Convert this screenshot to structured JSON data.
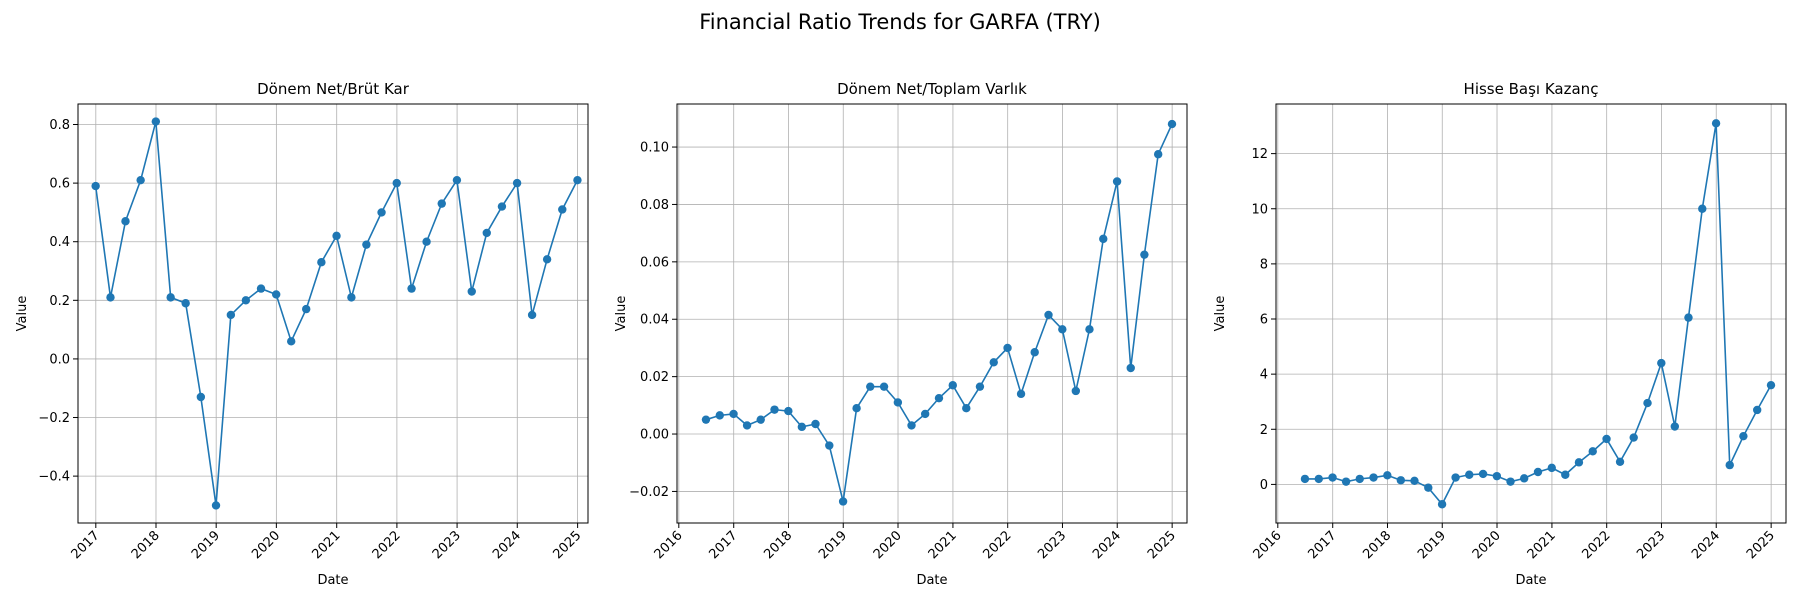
{
  "figure": {
    "title": "Financial Ratio Trends for GARFA (TRY)"
  },
  "colors": {
    "series": "#1f77b4",
    "grid": "#b0b0b0",
    "axes": "#000000"
  },
  "chart_data": [
    {
      "type": "line",
      "title": "Dönem Net/Brüt Kar",
      "xlabel": "Date",
      "ylabel": "Value",
      "x_axis": "date",
      "xlim": [
        "2016-09-15",
        "2025-03-05"
      ],
      "ylim": [
        -0.56,
        0.87
      ],
      "xticks": [
        "2017",
        "2018",
        "2019",
        "2020",
        "2021",
        "2022",
        "2023",
        "2024",
        "2025"
      ],
      "yticks": [
        -0.4,
        -0.2,
        0.0,
        0.2,
        0.4,
        0.6,
        0.8
      ],
      "ytick_labels": [
        "−0.4",
        "−0.2",
        "0.0",
        "0.2",
        "0.4",
        "0.6",
        "0.8"
      ],
      "grid": true,
      "marker": "circle",
      "x": [
        "2016-12-31",
        "2017-03-31",
        "2017-06-30",
        "2017-09-30",
        "2017-12-31",
        "2018-03-31",
        "2018-06-30",
        "2018-09-30",
        "2018-12-31",
        "2019-03-31",
        "2019-06-30",
        "2019-09-30",
        "2019-12-31",
        "2020-03-31",
        "2020-06-30",
        "2020-09-30",
        "2020-12-31",
        "2021-03-31",
        "2021-06-30",
        "2021-09-30",
        "2021-12-31",
        "2022-03-31",
        "2022-06-30",
        "2022-09-30",
        "2022-12-31",
        "2023-03-31",
        "2023-06-30",
        "2023-09-30",
        "2023-12-31",
        "2024-03-31",
        "2024-06-30",
        "2024-09-30",
        "2024-12-31"
      ],
      "y": [
        0.59,
        0.21,
        0.47,
        0.61,
        0.81,
        0.21,
        0.19,
        -0.13,
        -0.5,
        0.15,
        0.2,
        0.24,
        0.22,
        0.06,
        0.17,
        0.33,
        0.42,
        0.21,
        0.39,
        0.5,
        0.6,
        0.24,
        0.4,
        0.53,
        0.61,
        0.23,
        0.43,
        0.52,
        0.6,
        0.15,
        0.34,
        0.51,
        0.61
      ]
    },
    {
      "type": "line",
      "title": "Dönem Net/Toplam Varlık",
      "xlabel": "Date",
      "ylabel": "Value",
      "x_axis": "date",
      "xlim": [
        "2015-12-20",
        "2025-04-10"
      ],
      "ylim": [
        -0.031,
        0.115
      ],
      "xticks": [
        "2016",
        "2017",
        "2018",
        "2019",
        "2020",
        "2021",
        "2022",
        "2023",
        "2024",
        "2025"
      ],
      "yticks": [
        -0.02,
        0.0,
        0.02,
        0.04,
        0.06,
        0.08,
        0.1
      ],
      "ytick_labels": [
        "−0.02",
        "0.00",
        "0.02",
        "0.04",
        "0.06",
        "0.08",
        "0.10"
      ],
      "grid": true,
      "marker": "circle",
      "x": [
        "2016-06-30",
        "2016-09-30",
        "2016-12-31",
        "2017-03-31",
        "2017-06-30",
        "2017-09-30",
        "2017-12-31",
        "2018-03-31",
        "2018-06-30",
        "2018-09-30",
        "2018-12-31",
        "2019-03-31",
        "2019-06-30",
        "2019-09-30",
        "2019-12-31",
        "2020-03-31",
        "2020-06-30",
        "2020-09-30",
        "2020-12-31",
        "2021-03-31",
        "2021-06-30",
        "2021-09-30",
        "2021-12-31",
        "2022-03-31",
        "2022-06-30",
        "2022-09-30",
        "2022-12-31",
        "2023-03-31",
        "2023-06-30",
        "2023-09-30",
        "2023-12-31",
        "2024-03-31",
        "2024-06-30",
        "2024-09-30",
        "2024-12-31"
      ],
      "y": [
        0.005,
        0.0065,
        0.007,
        0.003,
        0.005,
        0.0085,
        0.008,
        0.0025,
        0.0035,
        -0.004,
        -0.0235,
        0.009,
        0.0165,
        0.0165,
        0.011,
        0.003,
        0.007,
        0.0125,
        0.017,
        0.009,
        0.0165,
        0.025,
        0.03,
        0.014,
        0.0285,
        0.0415,
        0.0365,
        0.015,
        0.0365,
        0.068,
        0.088,
        0.023,
        0.0625,
        0.0975,
        0.108
      ]
    },
    {
      "type": "line",
      "title": "Hisse Başı Kazanç",
      "xlabel": "Date",
      "ylabel": "Value",
      "x_axis": "date",
      "xlim": [
        "2015-12-20",
        "2025-04-10"
      ],
      "ylim": [
        -1.4,
        13.8
      ],
      "xticks": [
        "2016",
        "2017",
        "2018",
        "2019",
        "2020",
        "2021",
        "2022",
        "2023",
        "2024",
        "2025"
      ],
      "yticks": [
        0,
        2,
        4,
        6,
        8,
        10,
        12
      ],
      "ytick_labels": [
        "0",
        "2",
        "4",
        "6",
        "8",
        "10",
        "12"
      ],
      "grid": true,
      "marker": "circle",
      "x": [
        "2016-06-30",
        "2016-09-30",
        "2016-12-31",
        "2017-03-31",
        "2017-06-30",
        "2017-09-30",
        "2017-12-31",
        "2018-03-31",
        "2018-06-30",
        "2018-09-30",
        "2018-12-31",
        "2019-03-31",
        "2019-06-30",
        "2019-09-30",
        "2019-12-31",
        "2020-03-31",
        "2020-06-30",
        "2020-09-30",
        "2020-12-31",
        "2021-03-31",
        "2021-06-30",
        "2021-09-30",
        "2021-12-31",
        "2022-03-31",
        "2022-06-30",
        "2022-09-30",
        "2022-12-31",
        "2023-03-31",
        "2023-06-30",
        "2023-09-30",
        "2023-12-31",
        "2024-03-31",
        "2024-06-30",
        "2024-09-30",
        "2024-12-31"
      ],
      "y": [
        0.2,
        0.2,
        0.25,
        0.1,
        0.2,
        0.25,
        0.33,
        0.15,
        0.13,
        -0.12,
        -0.72,
        0.25,
        0.35,
        0.38,
        0.3,
        0.1,
        0.22,
        0.45,
        0.6,
        0.35,
        0.8,
        1.2,
        1.65,
        0.82,
        1.7,
        2.95,
        4.4,
        2.1,
        6.05,
        10.0,
        13.1,
        0.7,
        1.75,
        2.7,
        3.6
      ]
    }
  ]
}
